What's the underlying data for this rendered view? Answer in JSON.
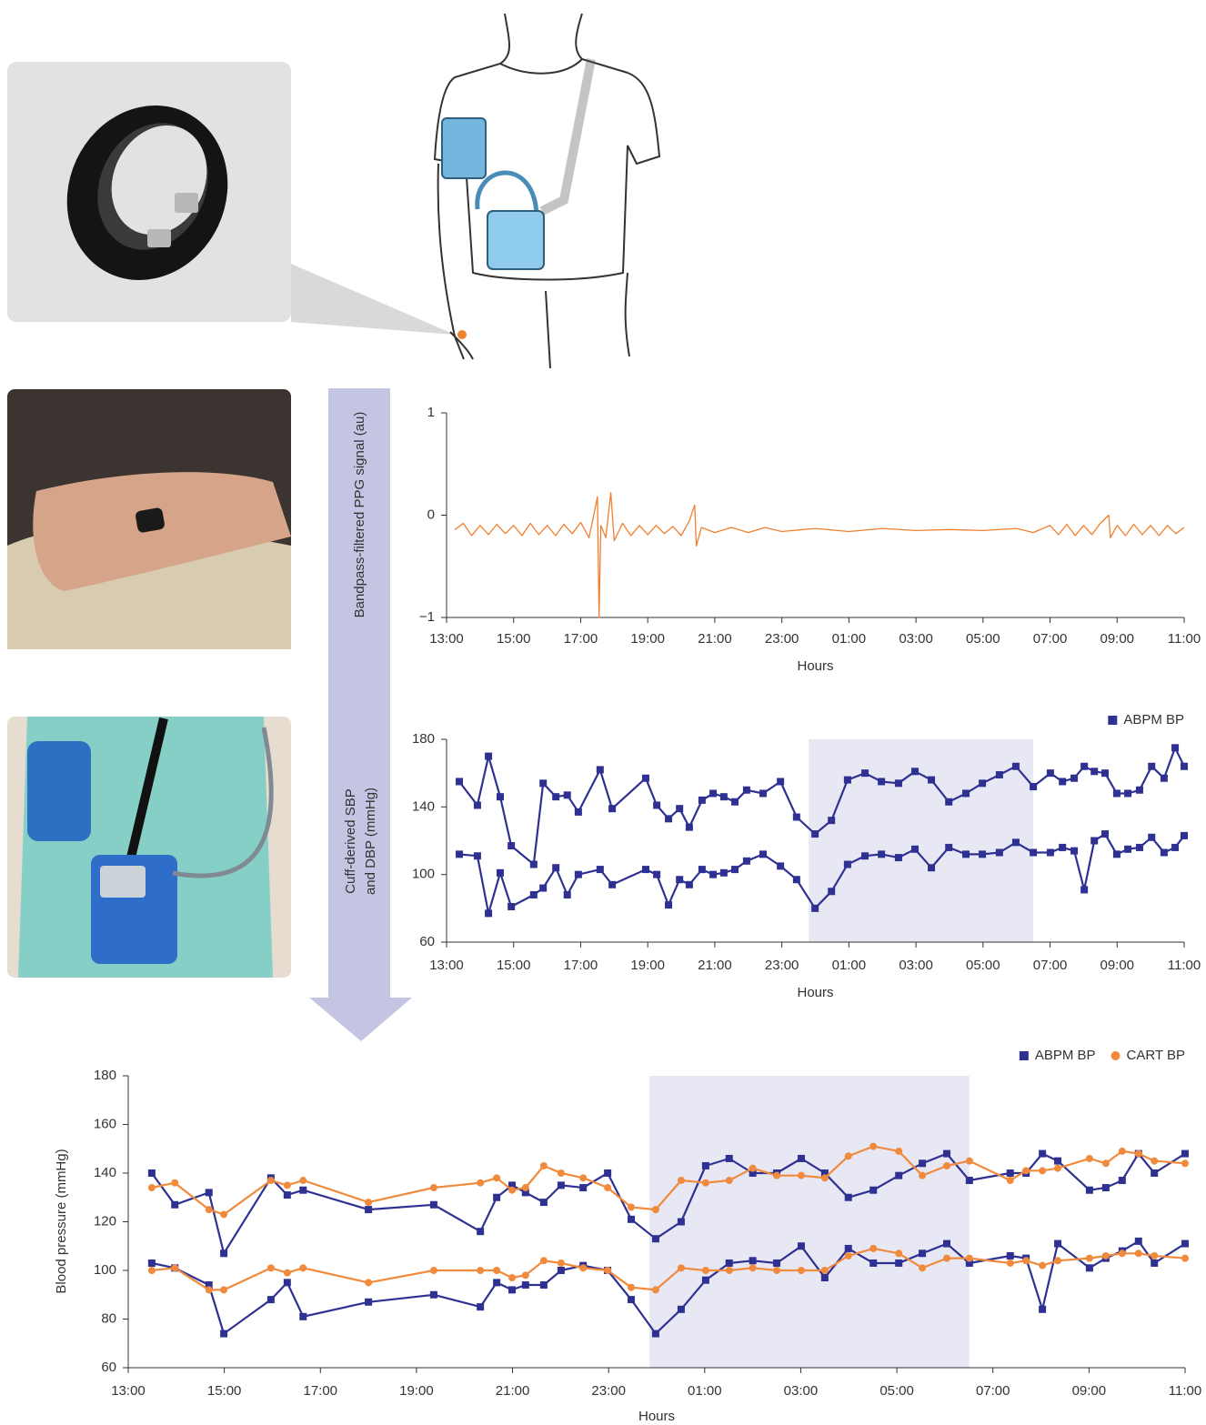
{
  "chart_data": [
    {
      "type": "line",
      "y_label": "Bandpass-filtered PPG signal (au)",
      "x_label": "Hours",
      "xlim": [
        0,
        22
      ],
      "xticks": [
        {
          "value": 0,
          "label": "13:00"
        },
        {
          "value": 2,
          "label": "15:00"
        },
        {
          "value": 4,
          "label": "17:00"
        },
        {
          "value": 6,
          "label": "19:00"
        },
        {
          "value": 8,
          "label": "21:00"
        },
        {
          "value": 10,
          "label": "23:00"
        },
        {
          "value": 12,
          "label": "01:00"
        },
        {
          "value": 14,
          "label": "03:00"
        },
        {
          "value": 16,
          "label": "05:00"
        },
        {
          "value": 18,
          "label": "07:00"
        },
        {
          "value": 20,
          "label": "09:00"
        },
        {
          "value": 22,
          "label": "11:00"
        }
      ],
      "ylim": [
        -1,
        1
      ],
      "yticks": [
        {
          "value": -1,
          "label": "−1"
        },
        0,
        1
      ],
      "x": [
        0.25,
        0.5,
        0.75,
        1,
        1.25,
        1.5,
        1.75,
        2,
        2.25,
        2.5,
        2.75,
        3,
        3.25,
        3.5,
        3.75,
        4,
        4.25,
        4.5,
        4.55,
        4.6,
        4.75,
        4.9,
        5,
        5.25,
        5.5,
        5.75,
        6,
        6.25,
        6.5,
        6.75,
        7,
        7.25,
        7.4,
        7.45,
        7.6,
        8,
        8.5,
        9,
        9.5,
        10,
        11,
        12,
        13,
        14,
        15,
        16,
        17,
        17.5,
        18,
        18.25,
        18.5,
        18.75,
        19,
        19.25,
        19.5,
        19.75,
        19.8,
        20,
        20.25,
        20.5,
        20.75,
        21,
        21.25,
        21.5,
        21.75,
        22
      ],
      "series": [
        {
          "color": "#f07f2e",
          "values": [
            -0.14,
            -0.08,
            -0.2,
            -0.1,
            -0.19,
            -0.09,
            -0.18,
            -0.1,
            -0.2,
            -0.08,
            -0.19,
            -0.1,
            -0.2,
            -0.09,
            -0.18,
            -0.07,
            -0.22,
            0.18,
            -1,
            -0.1,
            -0.22,
            0.22,
            -0.25,
            -0.08,
            -0.2,
            -0.1,
            -0.19,
            -0.1,
            -0.18,
            -0.11,
            -0.2,
            -0.05,
            0.1,
            -0.3,
            -0.12,
            -0.17,
            -0.12,
            -0.17,
            -0.12,
            -0.16,
            -0.13,
            -0.16,
            -0.13,
            -0.15,
            -0.14,
            -0.15,
            -0.13,
            -0.17,
            -0.1,
            -0.19,
            -0.09,
            -0.2,
            -0.1,
            -0.19,
            -0.08,
            0,
            -0.22,
            -0.1,
            -0.2,
            -0.09,
            -0.19,
            -0.1,
            -0.2,
            -0.1,
            -0.18,
            -0.12
          ]
        }
      ]
    },
    {
      "type": "line",
      "y_label": [
        "Cuff-derived SBP",
        "and DBP (mmHg)"
      ],
      "x_label": "Hours",
      "legend": "top-right",
      "xlim": [
        0,
        22
      ],
      "xticks": [
        {
          "value": 0,
          "label": "13:00"
        },
        {
          "value": 2,
          "label": "15:00"
        },
        {
          "value": 4,
          "label": "17:00"
        },
        {
          "value": 6,
          "label": "19:00"
        },
        {
          "value": 8,
          "label": "21:00"
        },
        {
          "value": 10,
          "label": "23:00"
        },
        {
          "value": 12,
          "label": "01:00"
        },
        {
          "value": 14,
          "label": "03:00"
        },
        {
          "value": 16,
          "label": "05:00"
        },
        {
          "value": 18,
          "label": "07:00"
        },
        {
          "value": 20,
          "label": "09:00"
        },
        {
          "value": 22,
          "label": "11:00"
        }
      ],
      "ylim": [
        60,
        180
      ],
      "yticks": [
        60,
        100,
        140,
        180
      ],
      "shaded_x": [
        10.8,
        17.5
      ],
      "shade_color": "#e8e8f4",
      "x": [
        0.38,
        0.92,
        1.25,
        1.6,
        1.93,
        2.6,
        2.88,
        3.26,
        3.6,
        3.93,
        4.58,
        4.94,
        5.94,
        6.27,
        6.62,
        6.95,
        7.24,
        7.62,
        7.95,
        8.27,
        8.6,
        8.95,
        9.44,
        9.96,
        10.44,
        10.99,
        11.48,
        11.96,
        12.48,
        12.97,
        13.48,
        13.97,
        14.46,
        14.98,
        15.49,
        15.98,
        16.49,
        16.98,
        17.5,
        18.01,
        18.37,
        18.72,
        19.02,
        19.32,
        19.64,
        19.99,
        20.32,
        20.67,
        21.03,
        21.4,
        21.73,
        22
      ],
      "series": [
        {
          "name": "ABPM BP",
          "color": "#2e3192",
          "marker": "square",
          "values": [
            155,
            141,
            170,
            146,
            117,
            106,
            154,
            146,
            147,
            137,
            162,
            139,
            157,
            141,
            133,
            139,
            128,
            144,
            148,
            146,
            143,
            150,
            148,
            155,
            134,
            124,
            132,
            156,
            160,
            155,
            154,
            161,
            156,
            143,
            148,
            154,
            159,
            164,
            152,
            160,
            155,
            157,
            164,
            161,
            160,
            148,
            148,
            150,
            164,
            157,
            175,
            164
          ]
        },
        {
          "color": "#2e3192",
          "marker": "square",
          "values": [
            112,
            111,
            77,
            101,
            81,
            88,
            92,
            104,
            88,
            100,
            103,
            94,
            103,
            100,
            82,
            97,
            94,
            103,
            100,
            101,
            103,
            108,
            112,
            105,
            97,
            80,
            90,
            106,
            111,
            112,
            110,
            115,
            104,
            116,
            112,
            112,
            113,
            119,
            113,
            113,
            116,
            114,
            91,
            120,
            124,
            112,
            115,
            116,
            122,
            113,
            116,
            123
          ]
        }
      ]
    },
    {
      "type": "line",
      "y_label": "Blood pressure (mmHg)",
      "x_label": "Hours",
      "legend": "top-right",
      "xlim": [
        0,
        22
      ],
      "xticks": [
        {
          "value": 0,
          "label": "13:00"
        },
        {
          "value": 2,
          "label": "15:00"
        },
        {
          "value": 4,
          "label": "17:00"
        },
        {
          "value": 6,
          "label": "19:00"
        },
        {
          "value": 8,
          "label": "21:00"
        },
        {
          "value": 10,
          "label": "23:00"
        },
        {
          "value": 12,
          "label": "01:00"
        },
        {
          "value": 14,
          "label": "03:00"
        },
        {
          "value": 16,
          "label": "05:00"
        },
        {
          "value": 18,
          "label": "07:00"
        },
        {
          "value": 20,
          "label": "09:00"
        },
        {
          "value": 22,
          "label": "11:00"
        }
      ],
      "ylim": [
        60,
        180
      ],
      "yticks": [
        60,
        80,
        100,
        120,
        140,
        160,
        180
      ],
      "shaded_x": [
        10.85,
        17.51
      ],
      "shade_color": "#e8e8f4",
      "x": [
        0.49,
        0.97,
        1.68,
        1.99,
        2.97,
        3.31,
        3.64,
        5,
        6.36,
        7.33,
        7.67,
        7.99,
        8.27,
        8.65,
        9.01,
        9.47,
        9.98,
        10.47,
        10.98,
        11.51,
        12.02,
        12.51,
        13,
        13.5,
        14.01,
        14.5,
        14.99,
        15.51,
        16.04,
        16.53,
        17.04,
        17.51,
        18.36,
        18.69,
        19.03,
        19.35,
        20.01,
        20.35,
        20.69,
        21.03,
        21.36,
        22
      ],
      "series": [
        {
          "name": "ABPM BP",
          "color": "#2e3192",
          "marker": "square",
          "values": [
            140,
            127,
            132,
            107,
            138,
            131,
            133,
            125,
            127,
            116,
            130,
            135,
            132,
            128,
            135,
            134,
            140,
            121,
            113,
            120,
            143,
            146,
            140,
            140,
            146,
            140,
            130,
            133,
            139,
            144,
            148,
            137,
            140,
            140,
            148,
            145,
            133,
            134,
            137,
            148,
            140,
            148
          ]
        },
        {
          "color": "#2e3192",
          "marker": "square",
          "values": [
            103,
            101,
            94,
            74,
            88,
            95,
            81,
            87,
            90,
            85,
            95,
            92,
            94,
            94,
            100,
            102,
            100,
            88,
            74,
            84,
            96,
            103,
            104,
            103,
            110,
            97,
            109,
            103,
            103,
            107,
            111,
            103,
            106,
            105,
            84,
            111,
            101,
            105,
            108,
            112,
            103,
            111
          ]
        },
        {
          "name": "CART BP",
          "color": "#f08a3c",
          "marker": "circle",
          "values": [
            134,
            136,
            125,
            123,
            137,
            135,
            137,
            128,
            134,
            136,
            138,
            133,
            134,
            143,
            140,
            138,
            134,
            126,
            125,
            137,
            136,
            137,
            142,
            139,
            139,
            138,
            147,
            151,
            149,
            139,
            143,
            145,
            137,
            141,
            141,
            142,
            146,
            144,
            149,
            148,
            145,
            144
          ]
        },
        {
          "color": "#f08a3c",
          "marker": "circle",
          "values": [
            100,
            101,
            92,
            92,
            101,
            99,
            101,
            95,
            100,
            100,
            100,
            97,
            98,
            104,
            103,
            101,
            100,
            93,
            92,
            101,
            100,
            100,
            101,
            100,
            100,
            100,
            106,
            109,
            107,
            101,
            105,
            105,
            103,
            104,
            102,
            104,
            105,
            106,
            107,
            107,
            106,
            105
          ]
        }
      ]
    }
  ]
}
